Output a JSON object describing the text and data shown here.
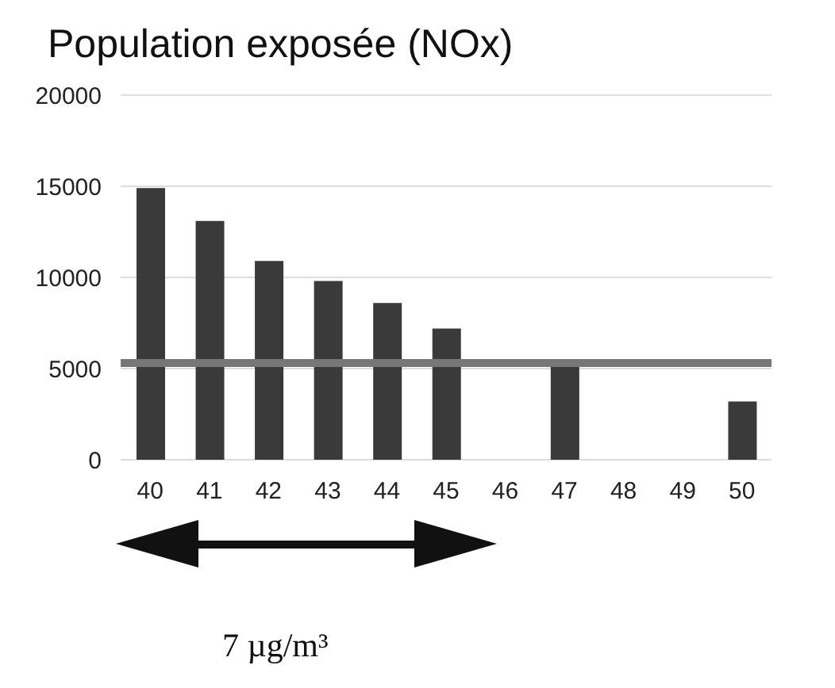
{
  "chart_data": {
    "type": "bar",
    "title": "Population exposée  (NOx)",
    "categories": [
      "40",
      "41",
      "42",
      "43",
      "44",
      "45",
      "46",
      "47",
      "48",
      "49",
      "50"
    ],
    "values": [
      14900,
      13100,
      10900,
      9800,
      8600,
      7200,
      null,
      5300,
      null,
      null,
      3200
    ],
    "color": "#3a3a3a",
    "ylim": [
      0,
      20000
    ],
    "yticks": [
      0,
      5000,
      10000,
      15000,
      20000
    ],
    "grid": "y",
    "ref_lines": [
      {
        "axis": "y",
        "value": 5300,
        "color": "#777777"
      }
    ],
    "annotations": [
      "7 µg/m³"
    ]
  }
}
